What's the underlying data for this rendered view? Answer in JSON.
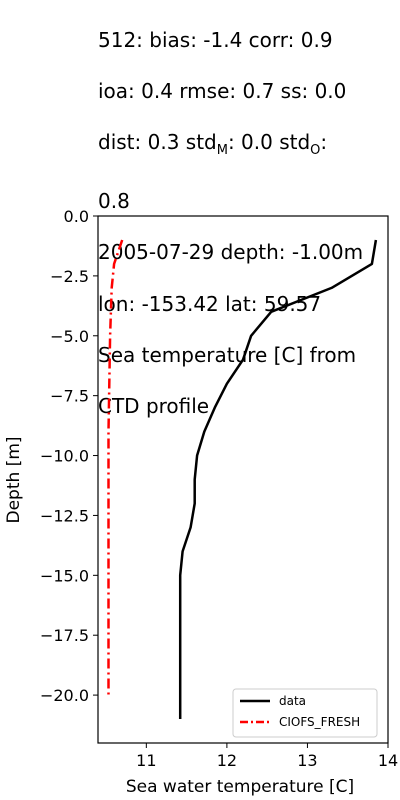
{
  "title_lines": [
    "512: bias: -1.4  corr: 0.9",
    "ioa: 0.4  rmse: 0.7  ss: 0.0",
    "dist: 0.3  std_M: 0.0  std_O:",
    "0.8",
    "2005-07-29 depth: -1.00m",
    "lon: -153.42 lat: 59.57",
    "Sea temperature [C] from",
    "CTD profile"
  ],
  "chart_data": {
    "type": "line",
    "title": "512: bias: -1.4  corr: 0.9 ioa: 0.4  rmse: 0.7  ss: 0.0 dist: 0.3  std_M: 0.0  std_O: 0.8 2005-07-29 depth: -1.00m lon: -153.42 lat: 59.57 Sea temperature [C] from CTD profile",
    "xlabel": "Sea water temperature [C]",
    "ylabel": "Depth [m]",
    "xlim": [
      10.4,
      14.0
    ],
    "ylim": [
      -22.0,
      0.0
    ],
    "xticks": [
      11,
      12,
      13,
      14
    ],
    "yticks": [
      0.0,
      -2.5,
      -5.0,
      -7.5,
      -10.0,
      -12.5,
      -15.0,
      -17.5,
      -20.0
    ],
    "ytick_labels": [
      "0.0",
      "−2.5",
      "−5.0",
      "−7.5",
      "−10.0",
      "−12.5",
      "−15.0",
      "−17.5",
      "−20.0"
    ],
    "grid": false,
    "legend_position": "lower-right",
    "series": [
      {
        "name": "data",
        "color": "#000000",
        "style": "solid",
        "x": [
          13.85,
          13.8,
          13.3,
          12.55,
          12.3,
          12.2,
          12.0,
          11.85,
          11.72,
          11.63,
          11.6,
          11.6,
          11.55,
          11.45,
          11.42,
          11.42,
          11.42,
          11.42
        ],
        "y": [
          -1,
          -2,
          -3,
          -4,
          -5,
          -6,
          -7,
          -8,
          -9,
          -10,
          -11,
          -12,
          -13,
          -14,
          -15,
          -17,
          -19,
          -21
        ]
      },
      {
        "name": "CIOFS_FRESH",
        "color": "#ff0000",
        "style": "dashdot",
        "x": [
          10.7,
          10.6,
          10.57,
          10.55,
          10.54,
          10.53,
          10.53,
          10.53,
          10.53,
          10.53
        ],
        "y": [
          -1,
          -2,
          -3,
          -5,
          -7,
          -9,
          -11,
          -14,
          -17,
          -20
        ]
      }
    ]
  }
}
